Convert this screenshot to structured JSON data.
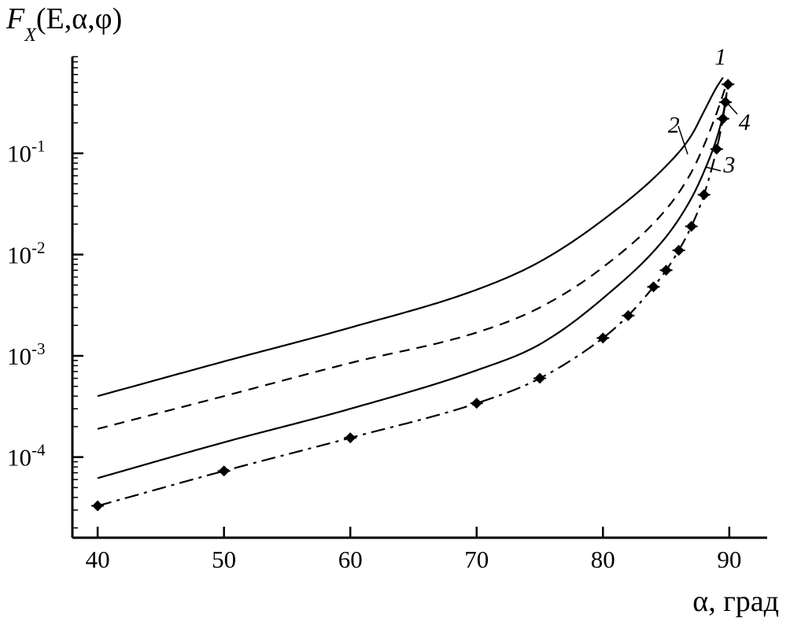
{
  "chart_data": {
    "type": "line",
    "ylabel_parts": {
      "f": "F",
      "sub": "X",
      "args": "(E,α,φ)"
    },
    "xlabel": "α, град",
    "xlim": [
      38,
      93
    ],
    "ylim": [
      1.6e-05,
      0.9
    ],
    "yscale": "log",
    "grid": false,
    "x_ticks": [
      40,
      50,
      60,
      70,
      80,
      90
    ],
    "y_tick_labels": [
      {
        "value": 0.0001,
        "base": "10",
        "exp": "-4"
      },
      {
        "value": 0.001,
        "base": "10",
        "exp": "-3"
      },
      {
        "value": 0.01,
        "base": "10",
        "exp": "-2"
      },
      {
        "value": 0.1,
        "base": "10",
        "exp": "-1"
      }
    ],
    "series": [
      {
        "name": "1",
        "style": "solid",
        "x": [
          40,
          50,
          60,
          70,
          75,
          80,
          85,
          87,
          88,
          89,
          89.5
        ],
        "y": [
          0.0004,
          0.00088,
          0.0019,
          0.0045,
          0.0085,
          0.022,
          0.075,
          0.15,
          0.26,
          0.45,
          0.56
        ]
      },
      {
        "name": "2",
        "style": "dashed",
        "x": [
          40,
          50,
          60,
          70,
          75,
          80,
          85,
          87,
          88,
          89,
          89.7
        ],
        "y": [
          0.00019,
          0.0004,
          0.00085,
          0.0017,
          0.003,
          0.0075,
          0.028,
          0.065,
          0.12,
          0.25,
          0.45
        ]
      },
      {
        "name": "3",
        "style": "solid",
        "x": [
          40,
          50,
          60,
          70,
          75,
          80,
          85,
          87,
          88,
          89,
          89.5,
          89.8
        ],
        "y": [
          6.2e-05,
          0.00014,
          0.0003,
          0.00072,
          0.0013,
          0.0037,
          0.015,
          0.036,
          0.066,
          0.14,
          0.24,
          0.4
        ]
      },
      {
        "name": "4",
        "style": "dash-dot",
        "markers": "diamond",
        "x": [
          40,
          50,
          60,
          70,
          75,
          80,
          82,
          84,
          85,
          86,
          87,
          88,
          89,
          89.5,
          89.7,
          89.9
        ],
        "y": [
          3.3e-05,
          7.3e-05,
          0.000155,
          0.00034,
          0.0006,
          0.0015,
          0.0025,
          0.0048,
          0.007,
          0.011,
          0.019,
          0.039,
          0.11,
          0.22,
          0.32,
          0.48
        ]
      }
    ],
    "curve_labels": [
      {
        "text": "1",
        "x": 89.3,
        "y": 0.75
      },
      {
        "text": "2",
        "x": 85.6,
        "y": 0.16
      },
      {
        "text": "3",
        "x": 90.0,
        "y": 0.065
      },
      {
        "text": "4",
        "x": 91.2,
        "y": 0.17
      }
    ]
  }
}
